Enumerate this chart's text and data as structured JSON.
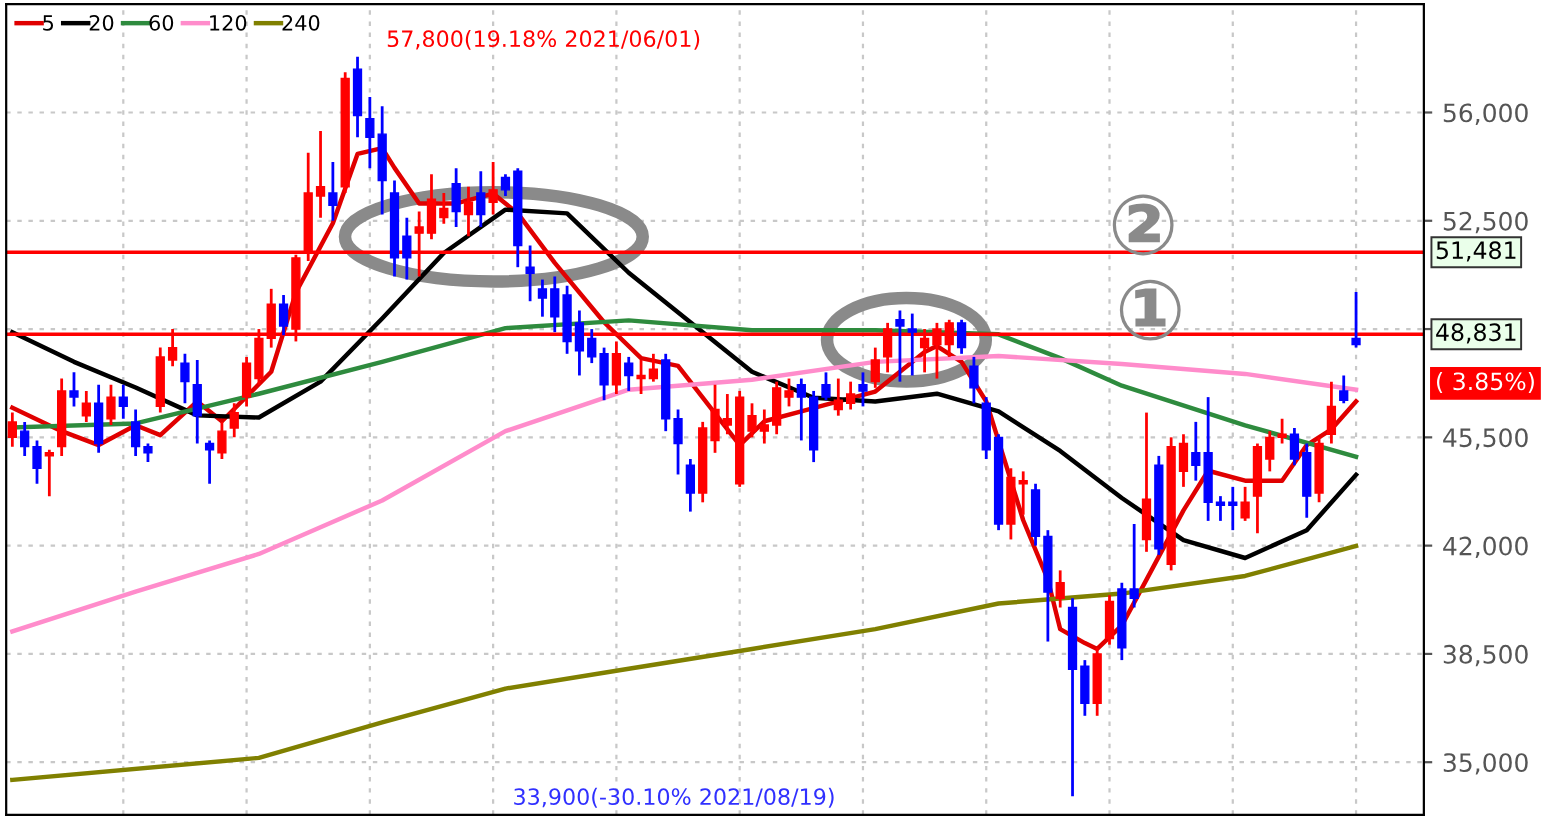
{
  "chart_data": {
    "type": "candlestick",
    "categories": [
      null,
      null,
      null,
      null,
      null,
      null,
      null,
      null,
      null,
      null,
      null,
      null,
      null,
      null,
      null,
      null,
      null,
      null,
      null,
      null,
      null,
      null,
      null,
      null,
      null,
      null,
      null,
      null,
      null,
      null,
      null,
      null,
      null,
      null,
      null,
      null,
      null,
      null,
      null,
      null,
      null,
      null,
      null,
      null,
      null,
      null,
      null,
      null,
      null,
      null,
      null,
      null,
      null,
      null,
      null,
      null,
      null,
      null,
      null,
      null,
      null,
      null,
      null,
      null,
      null,
      null,
      null,
      null,
      null,
      null,
      null,
      null,
      null,
      null,
      null,
      null,
      null,
      null,
      null,
      null,
      null,
      null,
      null,
      null,
      null,
      null,
      null,
      null,
      null,
      null,
      null,
      null,
      null,
      null,
      null,
      null,
      null,
      null,
      null,
      null,
      null,
      null,
      null,
      null,
      null,
      null,
      null,
      null,
      null,
      null,
      null,
      null,
      null,
      null,
      null
    ],
    "ohlc": [
      [
        45500,
        46300,
        45200,
        46000
      ],
      [
        45700,
        46000,
        44900,
        45200
      ],
      [
        45200,
        45400,
        44000,
        44500
      ],
      [
        44900,
        45100,
        43600,
        45000
      ],
      [
        45200,
        47400,
        44900,
        47000
      ],
      [
        47000,
        47600,
        46500,
        46800
      ],
      [
        46200,
        47000,
        46000,
        46600
      ],
      [
        46600,
        47200,
        45000,
        45300
      ],
      [
        46100,
        47200,
        45900,
        46800
      ],
      [
        46800,
        47200,
        46100,
        46500
      ],
      [
        46000,
        46400,
        44900,
        45200
      ],
      [
        45200,
        45300,
        44700,
        45000
      ],
      [
        46500,
        48400,
        46300,
        48100
      ],
      [
        48000,
        49000,
        47800,
        48400
      ],
      [
        47900,
        48200,
        46600,
        47300
      ],
      [
        47200,
        48000,
        45300,
        46200
      ],
      [
        45300,
        45400,
        44000,
        45100
      ],
      [
        45000,
        46000,
        44800,
        45700
      ],
      [
        45800,
        46600,
        45500,
        46300
      ],
      [
        46800,
        48100,
        46500,
        47900
      ],
      [
        47400,
        49000,
        47200,
        48700
      ],
      [
        48700,
        50300,
        48400,
        49800
      ],
      [
        49800,
        50100,
        48800,
        49100
      ],
      [
        49000,
        51400,
        48600,
        51300
      ],
      [
        51500,
        54700,
        51200,
        53400
      ],
      [
        53300,
        55400,
        52600,
        53600
      ],
      [
        53400,
        54400,
        52500,
        53000
      ],
      [
        53600,
        57300,
        53400,
        57100
      ],
      [
        57400,
        57800,
        55200,
        55900
      ],
      [
        55800,
        56500,
        54200,
        55200
      ],
      [
        55300,
        56200,
        52700,
        53800
      ],
      [
        53400,
        53800,
        50700,
        51300
      ],
      [
        52000,
        52600,
        50600,
        51300
      ],
      [
        52100,
        52800,
        50700,
        52300
      ],
      [
        52100,
        54000,
        51900,
        53200
      ],
      [
        52600,
        53400,
        52400,
        52900
      ],
      [
        53700,
        54200,
        52300,
        52800
      ],
      [
        52700,
        53600,
        52000,
        53100
      ],
      [
        53400,
        54100,
        52300,
        52700
      ],
      [
        53100,
        54400,
        52700,
        53500
      ],
      [
        53900,
        54000,
        53300,
        53500
      ],
      [
        54100,
        54200,
        51000,
        51700
      ],
      [
        51000,
        51700,
        49900,
        50800
      ],
      [
        50300,
        50600,
        49400,
        50000
      ],
      [
        50300,
        50700,
        48900,
        49400
      ],
      [
        50100,
        50400,
        48200,
        48600
      ],
      [
        49200,
        49600,
        47500,
        48300
      ],
      [
        48700,
        49000,
        47900,
        48100
      ],
      [
        48200,
        48400,
        46700,
        47200
      ],
      [
        47200,
        48600,
        46900,
        48200
      ],
      [
        47900,
        48100,
        47000,
        47500
      ],
      [
        47400,
        48000,
        46900,
        47500
      ],
      [
        47400,
        48200,
        47300,
        47700
      ],
      [
        48000,
        48200,
        45700,
        46100
      ],
      [
        46100,
        46400,
        44300,
        45300
      ],
      [
        44600,
        44800,
        43100,
        43700
      ],
      [
        43700,
        46000,
        43400,
        45800
      ],
      [
        45400,
        47200,
        45000,
        46400
      ],
      [
        45900,
        46900,
        45600,
        46100
      ],
      [
        44000,
        47000,
        43900,
        46800
      ],
      [
        45700,
        46600,
        45500,
        46200
      ],
      [
        45700,
        46400,
        45300,
        45900
      ],
      [
        45900,
        47300,
        45600,
        47100
      ],
      [
        46800,
        47400,
        46500,
        47000
      ],
      [
        47200,
        47400,
        45400,
        46800
      ],
      [
        46800,
        47000,
        44700,
        45100
      ],
      [
        47200,
        47600,
        46700,
        46800
      ],
      [
        46400,
        47400,
        46200,
        46700
      ],
      [
        46600,
        47300,
        46400,
        46900
      ],
      [
        47200,
        47600,
        46500,
        47000
      ],
      [
        47300,
        48400,
        47100,
        48000
      ],
      [
        48100,
        49200,
        47600,
        49000
      ],
      [
        49300,
        49600,
        47300,
        49100
      ],
      [
        49000,
        49500,
        47500,
        48900
      ],
      [
        48400,
        49000,
        47600,
        48700
      ],
      [
        48500,
        49200,
        47400,
        49000
      ],
      [
        48500,
        49300,
        48100,
        49200
      ],
      [
        49200,
        49300,
        48200,
        48400
      ],
      [
        47800,
        48100,
        46600,
        47100
      ],
      [
        46600,
        46800,
        44800,
        45100
      ],
      [
        45500,
        45600,
        42500,
        42700
      ],
      [
        42700,
        44500,
        42200,
        44200
      ],
      [
        44000,
        44400,
        43000,
        44100
      ],
      [
        43800,
        44000,
        42000,
        42300
      ],
      [
        42300,
        42500,
        38900,
        40500
      ],
      [
        40300,
        41200,
        40000,
        40800
      ],
      [
        40000,
        40300,
        33900,
        38000
      ],
      [
        38100,
        38300,
        36500,
        36900
      ],
      [
        36900,
        38700,
        36500,
        38500
      ],
      [
        39000,
        40400,
        38800,
        40200
      ],
      [
        40600,
        40800,
        38300,
        38700
      ],
      [
        40600,
        42700,
        40000,
        40300
      ],
      [
        42200,
        46300,
        41800,
        43500
      ],
      [
        44600,
        44900,
        41700,
        41900
      ],
      [
        41400,
        45500,
        41200,
        45200
      ],
      [
        44400,
        45600,
        43900,
        45300
      ],
      [
        45000,
        46000,
        44100,
        44600
      ],
      [
        45000,
        46800,
        42800,
        43400
      ],
      [
        43400,
        43600,
        42800,
        43300
      ],
      [
        43400,
        43900,
        42500,
        43300
      ],
      [
        42900,
        43900,
        42800,
        43400
      ],
      [
        43600,
        45300,
        42400,
        45200
      ],
      [
        44800,
        45700,
        44400,
        45500
      ],
      [
        45500,
        46100,
        45300,
        45600
      ],
      [
        45600,
        45800,
        44600,
        44800
      ],
      [
        45000,
        45300,
        42900,
        43600
      ],
      [
        43700,
        45500,
        43400,
        45300
      ],
      [
        45600,
        47300,
        45300,
        46500
      ],
      [
        47000,
        47500,
        46600,
        46700
      ],
      [
        48700,
        50200,
        48400,
        48500
      ],
      null,
      null,
      null,
      null,
      null
    ],
    "colors": [
      "#ff0000",
      "#0000ff",
      "#0000ff",
      "#ff0000",
      "#ff0000",
      "#0000ff",
      "#ff0000",
      "#0000ff",
      "#ff0000",
      "#0000ff",
      "#0000ff",
      "#0000ff",
      "#ff0000",
      "#ff0000",
      "#0000ff",
      "#0000ff",
      "#0000ff",
      "#ff0000",
      "#ff0000",
      "#ff0000",
      "#ff0000",
      "#ff0000",
      "#0000ff",
      "#ff0000",
      "#ff0000",
      "#ff0000",
      "#0000ff",
      "#ff0000",
      "#0000ff",
      "#0000ff",
      "#0000ff",
      "#0000ff",
      "#0000ff",
      "#ff0000",
      "#ff0000",
      "#ff0000",
      "#0000ff",
      "#ff0000",
      "#0000ff",
      "#ff0000",
      "#0000ff",
      "#0000ff",
      "#0000ff",
      "#0000ff",
      "#0000ff",
      "#0000ff",
      "#0000ff",
      "#0000ff",
      "#0000ff",
      "#ff0000",
      "#0000ff",
      "#ff0000",
      "#ff0000",
      "#0000ff",
      "#0000ff",
      "#0000ff",
      "#ff0000",
      "#ff0000",
      "#ff0000",
      "#ff0000",
      "#ff0000",
      "#ff0000",
      "#ff0000",
      "#ff0000",
      "#0000ff",
      "#0000ff",
      "#0000ff",
      "#ff0000",
      "#ff0000",
      "#0000ff",
      "#ff0000",
      "#ff0000",
      "#0000ff",
      "#0000ff",
      "#ff0000",
      "#ff0000",
      "#ff0000",
      "#0000ff",
      "#0000ff",
      "#0000ff",
      "#0000ff",
      "#ff0000",
      "#ff0000",
      "#0000ff",
      "#0000ff",
      "#ff0000",
      "#0000ff",
      "#0000ff",
      "#ff0000",
      "#ff0000",
      "#0000ff",
      "#0000ff",
      "#ff0000",
      "#0000ff",
      "#ff0000",
      "#ff0000",
      "#0000ff",
      "#0000ff",
      "#0000ff",
      "#0000ff",
      "#ff0000",
      "#ff0000",
      "#ff0000",
      "#ff0000",
      "#0000ff",
      "#0000ff",
      "#ff0000",
      "#ff0000",
      "#0000ff",
      "#0000ff",
      null,
      null,
      null,
      null,
      null
    ],
    "series": [
      {
        "name": "5",
        "type": "line",
        "color": "#e00000",
        "values": [
          46460,
          null,
          null,
          null,
          45700,
          null,
          null,
          45250,
          null,
          null,
          45890,
          null,
          45570,
          null,
          null,
          46660,
          null,
          46020,
          null,
          null,
          null,
          47620,
          null,
          50180,
          null,
          null,
          52420,
          null,
          54660,
          null,
          54850,
          54210,
          null,
          53060,
          null,
          null,
          53060,
          null,
          null,
          53380,
          null,
          52740,
          null,
          null,
          51140,
          null,
          null,
          null,
          49220,
          null,
          null,
          48060,
          null,
          null,
          47810,
          null,
          null,
          null,
          null,
          45250,
          null,
          46020,
          null,
          null,
          46340,
          null,
          null,
          46660,
          null,
          null,
          46980,
          null,
          null,
          null,
          48260,
          48450,
          null,
          47940,
          null,
          46660,
          null,
          null,
          42820,
          null,
          40900,
          39300,
          null,
          38850,
          38660,
          null,
          39420,
          null,
          40900,
          null,
          null,
          43140,
          null,
          44420,
          null,
          null,
          44100,
          null,
          null,
          44100,
          null,
          45250,
          null,
          45760,
          null,
          46660,
          null,
          null,
          null,
          null,
          null
        ]
      },
      {
        "name": "20",
        "type": "line",
        "color": "#000000",
        "values": [
          48900,
          null,
          null,
          null,
          null,
          47940,
          null,
          null,
          null,
          null,
          47110,
          null,
          null,
          null,
          null,
          46210,
          null,
          null,
          null,
          null,
          46140,
          null,
          null,
          null,
          null,
          47300,
          null,
          null,
          null,
          null,
          49340,
          null,
          null,
          null,
          null,
          51460,
          null,
          null,
          null,
          null,
          52860,
          null,
          null,
          null,
          null,
          52740,
          null,
          null,
          null,
          null,
          50820,
          null,
          null,
          null,
          null,
          49220,
          null,
          null,
          null,
          null,
          47620,
          null,
          null,
          null,
          null,
          46780,
          null,
          null,
          null,
          null,
          46660,
          null,
          null,
          null,
          null,
          46910,
          null,
          null,
          null,
          null,
          46340,
          null,
          null,
          null,
          null,
          45060,
          null,
          null,
          null,
          null,
          43540,
          null,
          null,
          null,
          null,
          42180,
          null,
          null,
          null,
          null,
          41600,
          null,
          null,
          null,
          null,
          42500,
          null,
          null,
          null,
          44290,
          null,
          null,
          null,
          null,
          null
        ]
      },
      {
        "name": "60",
        "type": "line",
        "color": "#2e8b3e",
        "values": [
          45820,
          null,
          null,
          null,
          null,
          null,
          null,
          null,
          null,
          null,
          45950,
          null,
          null,
          null,
          null,
          null,
          null,
          null,
          null,
          null,
          46910,
          null,
          null,
          null,
          null,
          null,
          null,
          null,
          null,
          null,
          47940,
          null,
          null,
          null,
          null,
          null,
          null,
          null,
          null,
          null,
          49030,
          null,
          null,
          null,
          null,
          null,
          null,
          null,
          null,
          null,
          49280,
          null,
          null,
          null,
          null,
          null,
          null,
          null,
          null,
          null,
          48960,
          null,
          null,
          null,
          null,
          null,
          null,
          null,
          null,
          null,
          48960,
          null,
          null,
          null,
          null,
          null,
          null,
          null,
          null,
          null,
          48830,
          null,
          null,
          null,
          null,
          48060,
          null,
          null,
          null,
          null,
          47170,
          null,
          null,
          null,
          null,
          null,
          null,
          null,
          null,
          null,
          45890,
          null,
          null,
          null,
          null,
          null,
          null,
          null,
          null,
          44870,
          null,
          null,
          null,
          null,
          null
        ]
      },
      {
        "name": "120",
        "type": "line",
        "color": "#ff8ccb",
        "values": [
          39230,
          null,
          null,
          null,
          null,
          null,
          null,
          null,
          null,
          null,
          40510,
          null,
          null,
          null,
          null,
          null,
          null,
          null,
          null,
          null,
          41730,
          null,
          null,
          null,
          null,
          null,
          null,
          null,
          null,
          null,
          43460,
          null,
          null,
          null,
          null,
          null,
          null,
          null,
          null,
          null,
          45700,
          null,
          null,
          null,
          null,
          null,
          null,
          null,
          null,
          null,
          47040,
          null,
          null,
          null,
          null,
          null,
          null,
          null,
          null,
          null,
          47360,
          null,
          null,
          null,
          null,
          null,
          null,
          null,
          null,
          null,
          47940,
          null,
          null,
          null,
          null,
          null,
          null,
          null,
          null,
          null,
          48130,
          null,
          null,
          null,
          null,
          null,
          null,
          null,
          null,
          null,
          47870,
          null,
          null,
          null,
          null,
          null,
          null,
          null,
          null,
          null,
          47550,
          null,
          null,
          null,
          null,
          null,
          null,
          null,
          null,
          47040,
          null,
          null,
          null,
          null,
          null
        ]
      },
      {
        "name": "240",
        "type": "line",
        "color": "#808000",
        "values": [
          34430,
          null,
          null,
          null,
          null,
          null,
          null,
          null,
          null,
          null,
          null,
          null,
          null,
          null,
          null,
          null,
          null,
          null,
          null,
          null,
          35140,
          null,
          null,
          null,
          null,
          null,
          null,
          null,
          null,
          null,
          36290,
          null,
          null,
          null,
          null,
          null,
          null,
          null,
          null,
          null,
          37380,
          null,
          null,
          null,
          null,
          null,
          null,
          null,
          null,
          null,
          38020,
          null,
          null,
          null,
          null,
          null,
          null,
          null,
          null,
          null,
          38660,
          null,
          null,
          null,
          null,
          null,
          null,
          null,
          null,
          null,
          39300,
          null,
          null,
          null,
          null,
          null,
          null,
          null,
          null,
          null,
          40130,
          null,
          null,
          null,
          null,
          null,
          null,
          null,
          null,
          null,
          40450,
          null,
          null,
          null,
          null,
          null,
          null,
          null,
          null,
          null,
          41020,
          null,
          null,
          null,
          null,
          null,
          null,
          null,
          null,
          41990,
          null,
          null,
          null,
          null,
          null
        ]
      }
    ],
    "ylim": [
      33300,
      59500
    ],
    "yticks": [
      {
        "value": 35000,
        "label": "35,000"
      },
      {
        "value": 38500,
        "label": "38,500"
      },
      {
        "value": 42000,
        "label": "42,000"
      },
      {
        "value": 45500,
        "label": "45,500"
      },
      {
        "value": 49000,
        "label": null
      },
      {
        "value": 52500,
        "label": "52,500"
      },
      {
        "value": 56000,
        "label": "56,000"
      }
    ],
    "ref_lines": [
      {
        "axis": "y",
        "value": 51481,
        "label": "51,481",
        "color": "#ff0000"
      },
      {
        "axis": "y",
        "value": 48831,
        "label": "48,831",
        "color": "#ff0000"
      }
    ],
    "annotations": [
      "57,800(19.18% 2021/06/01)",
      "33,900(-30.10% 2021/08/19)",
      "( 3.85%)",
      "②",
      "①"
    ],
    "grid": true,
    "legend": "top left",
    "tick_labels": "y"
  }
}
